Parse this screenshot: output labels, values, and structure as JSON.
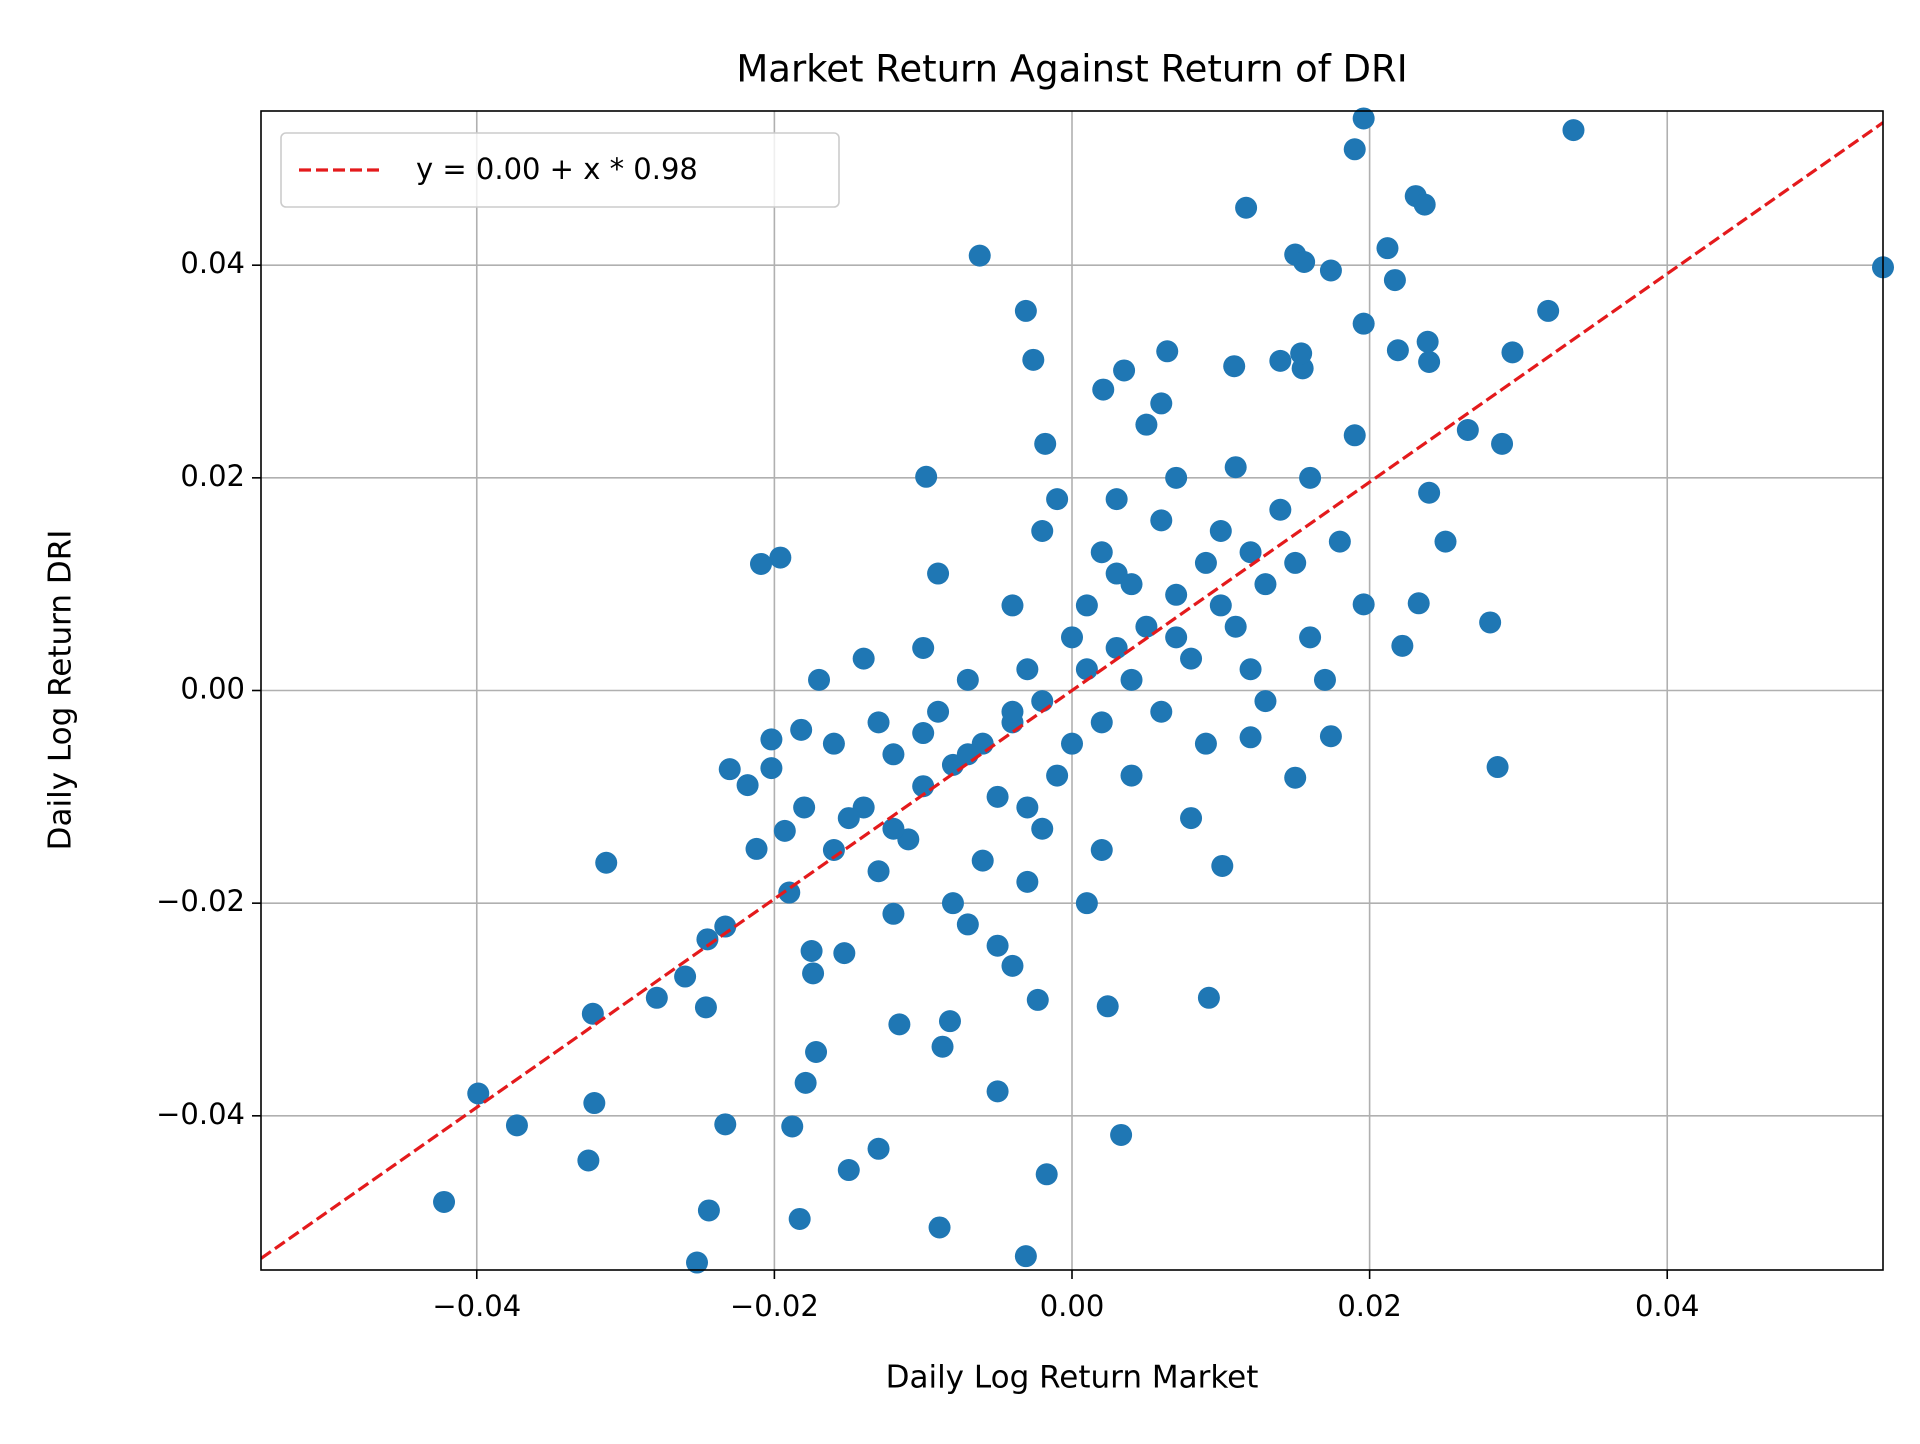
{
  "chart_data": {
    "type": "scatter",
    "title": "Market Return Against Return of DRI",
    "xlabel": "Daily Log Return Market",
    "ylabel": "Daily Log Return DRI",
    "xlim": [
      -0.0545,
      0.0545
    ],
    "ylim": [
      -0.0545,
      0.0545
    ],
    "xticks": [
      {
        "value": -0.04,
        "label": "−0.04"
      },
      {
        "value": -0.02,
        "label": "−0.02"
      },
      {
        "value": 0,
        "label": "0.00"
      },
      0.02,
      0.04
    ],
    "yticks": [
      {
        "value": -0.04,
        "label": "−0.04"
      },
      {
        "value": -0.02,
        "label": "−0.02"
      },
      {
        "value": 0,
        "label": "0.00"
      },
      0.02,
      0.04
    ],
    "grid": true,
    "legend": "upper left",
    "color": "#1f77b4",
    "fit": {
      "label": "y = 0.00 + x * 0.98",
      "intercept": 0,
      "slope": 0.98,
      "color": "#e41a1c"
    },
    "x": [
      0.0196,
      0.0337,
      0.019,
      0.0117,
      0.0231,
      0.0237,
      -0.0062,
      0.015,
      0.0156,
      0.0174,
      0.0212,
      0.0217,
      0.0545,
      -0.0031,
      -0.0026,
      0.032,
      0.0296,
      0.0289,
      0.0266,
      0.0251,
      0.024,
      0.024,
      0.0239,
      0.0196,
      0.0219,
      0.0281,
      0.0286,
      0.0222,
      0.0196,
      0.0233,
      -0.0098,
      -0.0196,
      -0.0209,
      -0.0313,
      -0.0399,
      -0.0373,
      -0.0422,
      -0.0325,
      -0.0321,
      -0.0322,
      -0.0279,
      -0.026,
      -0.0246,
      -0.0245,
      -0.0233,
      -0.0233,
      -0.0244,
      -0.0252,
      -0.0188,
      -0.0183,
      -0.015,
      -0.013,
      -0.0089,
      -0.0031,
      -0.0017,
      0.0033,
      -0.005,
      0.0092,
      0.0024,
      -0.0023,
      -0.004,
      -0.0087,
      -0.0082,
      -0.0116,
      -0.0179,
      -0.0172,
      -0.0174,
      -0.0175,
      -0.0153,
      -0.023,
      -0.0218,
      -0.0202,
      -0.0202,
      -0.0212,
      -0.0193,
      -0.0182,
      0.015,
      0.0174,
      0.012,
      0.0101,
      0.0109,
      0.014,
      0.0155,
      0.0154,
      0.0064,
      0.0035,
      0.0021,
      -0.0018,
      0.001,
      -0.002,
      0.003,
      -0.004,
      0.005,
      -0.006,
      0.002,
      -0.003,
      0.007,
      -0.008,
      0.004,
      -0.005,
      0.006,
      -0.007,
      0.009,
      -0.01,
      0.001,
      -0.001,
      0.008,
      -0.009,
      0.011,
      -0.012,
      0.002,
      -0.002,
      0.01,
      -0.011,
      0.013,
      -0.014,
      0.0,
      0.0,
      0.004,
      -0.004,
      0.012,
      -0.013,
      0.006,
      -0.006,
      0.015,
      -0.015,
      0.003,
      -0.003,
      0.016,
      -0.016,
      0.007,
      -0.008,
      0.009,
      -0.01,
      0.014,
      -0.013,
      0.005,
      -0.005,
      0.017,
      -0.017,
      0.002,
      -0.002,
      0.011,
      -0.012,
      0.018,
      -0.018,
      0.008,
      -0.009,
      0.001,
      -0.001,
      0.013,
      -0.014,
      0.006,
      -0.007,
      0.019,
      -0.019,
      0.01,
      -0.01,
      0.003,
      -0.003,
      0.012,
      -0.012,
      0.016,
      -0.016,
      0.004,
      -0.004,
      0.007,
      -0.007
    ],
    "values": [
      0.0538,
      0.0527,
      0.0509,
      0.0454,
      0.0465,
      0.0457,
      0.0409,
      0.041,
      0.0403,
      0.0395,
      0.0416,
      0.0386,
      0.0398,
      0.0357,
      0.0311,
      0.0357,
      0.0318,
      0.0232,
      0.0245,
      0.014,
      0.0186,
      0.0309,
      0.0328,
      0.0345,
      0.032,
      0.0064,
      -0.0072,
      0.0042,
      0.0081,
      0.0082,
      0.0201,
      0.0125,
      0.0119,
      -0.0162,
      -0.0379,
      -0.0409,
      -0.0481,
      -0.0442,
      -0.0388,
      -0.0304,
      -0.0289,
      -0.0269,
      -0.0298,
      -0.0234,
      -0.0222,
      -0.0408,
      -0.0489,
      -0.0538,
      -0.041,
      -0.0497,
      -0.0451,
      -0.0431,
      -0.0505,
      -0.0532,
      -0.0455,
      -0.0418,
      -0.0377,
      -0.0289,
      -0.0297,
      -0.0291,
      -0.0259,
      -0.0335,
      -0.0311,
      -0.0314,
      -0.0369,
      -0.034,
      -0.0266,
      -0.0245,
      -0.0247,
      -0.0074,
      -0.0089,
      -0.0046,
      -0.0073,
      -0.0149,
      -0.0132,
      -0.0037,
      -0.0082,
      -0.0043,
      -0.0044,
      -0.0165,
      0.0305,
      0.031,
      0.0303,
      0.0317,
      0.0319,
      0.0301,
      0.0283,
      0.0232,
      0.002,
      -0.001,
      0.004,
      -0.003,
      0.006,
      -0.005,
      -0.003,
      0.002,
      0.009,
      -0.007,
      0.01,
      -0.01,
      -0.002,
      0.001,
      0.012,
      -0.009,
      0.008,
      -0.008,
      0.003,
      -0.002,
      0.006,
      -0.006,
      0.013,
      -0.013,
      0.015,
      -0.014,
      0.01,
      -0.011,
      0.005,
      -0.005,
      -0.008,
      0.008,
      0.002,
      -0.003,
      0.016,
      -0.016,
      0.012,
      -0.012,
      0.018,
      -0.018,
      0.005,
      -0.005,
      0.02,
      -0.02,
      -0.005,
      0.004,
      0.017,
      -0.017,
      0.025,
      -0.024,
      0.001,
      0.001,
      -0.015,
      0.015,
      0.021,
      -0.021,
      0.014,
      -0.011,
      -0.012,
      0.011,
      -0.02,
      0.018,
      -0.001,
      0.003,
      0.027,
      -0.022,
      0.024,
      -0.019,
      0.008,
      -0.004,
      0.011,
      -0.011,
      0.013,
      -0.013,
      0.02,
      -0.015,
      0.001,
      -0.002,
      0.005,
      -0.006
    ]
  }
}
